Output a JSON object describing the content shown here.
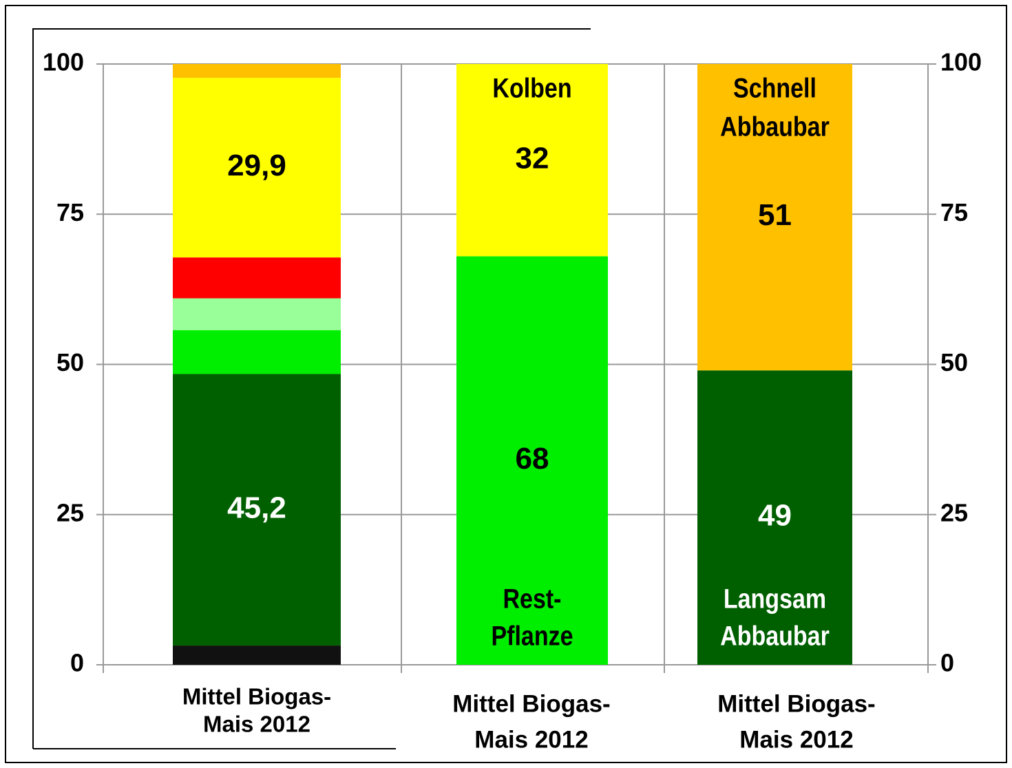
{
  "chart_data": {
    "type": "stacked_bar",
    "categories": [
      [
        "Mittel Biogas-",
        "Mais 2012"
      ],
      [
        "Mittel Biogas-",
        "Mais 2012"
      ],
      [
        "Mittel Biogas-",
        "Mais 2012"
      ]
    ],
    "stacks": [
      [
        {
          "value": 3.2,
          "color": "#111111"
        },
        {
          "value": 45.2,
          "value_label": "45,2",
          "color": "#006000",
          "label_color": "#ffffff"
        },
        {
          "value": 7.3,
          "color": "#00ee00"
        },
        {
          "value": 5.3,
          "color": "#99ff99"
        },
        {
          "value": 6.8,
          "color": "#ff0000"
        },
        {
          "value": 29.9,
          "value_label": "29,9",
          "color": "#ffff00",
          "label_color": "#000000"
        },
        {
          "value": 2.3,
          "color": "#ffc000"
        }
      ],
      [
        {
          "value": 68,
          "show_value": true,
          "name": [
            "Rest-",
            "Pflanze"
          ],
          "color": "#00ee00",
          "label_color": "#000000"
        },
        {
          "value": 32,
          "show_value": true,
          "name": [
            "Kolben"
          ],
          "color": "#ffff00",
          "label_color": "#000000"
        }
      ],
      [
        {
          "value": 49,
          "show_value": true,
          "name": [
            "Langsam",
            "Abbaubar"
          ],
          "color": "#006000",
          "label_color": "#ffffff"
        },
        {
          "value": 51,
          "show_value": true,
          "name": [
            "Schnell",
            "Abbaubar"
          ],
          "color": "#ffc000",
          "label_color": "#000000"
        }
      ]
    ],
    "ylim": [
      0,
      100
    ],
    "yticks": [
      0,
      25,
      50,
      75,
      100
    ],
    "y2lim": [
      0,
      100
    ],
    "y2ticks": [
      0,
      25,
      50,
      75,
      100
    ],
    "grid": true
  }
}
